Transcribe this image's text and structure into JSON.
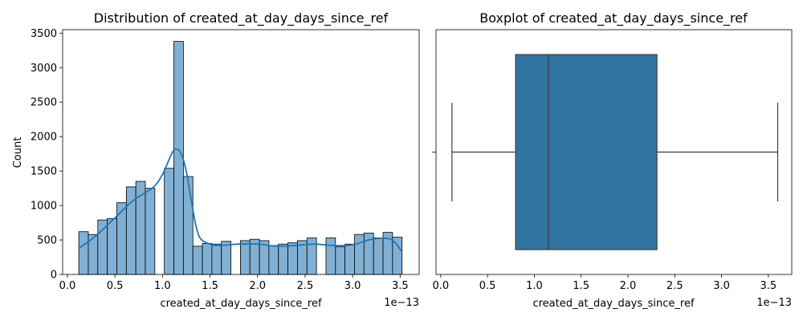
{
  "chart_data": [
    {
      "type": "histogram",
      "title": "Distribution of created_at_day_days_since_ref",
      "xlabel": "created_at_day_days_since_ref",
      "ylabel": "Count",
      "x_scale_label": "1e−13",
      "xlim": [
        -0.05,
        3.7
      ],
      "ylim": [
        0,
        3550
      ],
      "x_ticks": [
        0.0,
        0.5,
        1.0,
        1.5,
        2.0,
        2.5,
        3.0,
        3.5
      ],
      "x_tick_labels": [
        "0.0",
        "0.5",
        "1.0",
        "1.5",
        "2.0",
        "2.5",
        "3.0",
        "3.5"
      ],
      "y_ticks": [
        0,
        500,
        1000,
        1500,
        2000,
        2500,
        3000,
        3500
      ],
      "y_tick_labels": [
        "0",
        "500",
        "1000",
        "1500",
        "2000",
        "2500",
        "3000",
        "3500"
      ],
      "bar_color": "#82b0d4",
      "kde_color": "#1f77b4",
      "bins": [
        {
          "x0": 0.12,
          "x1": 0.22,
          "count": 620
        },
        {
          "x0": 0.22,
          "x1": 0.32,
          "count": 580
        },
        {
          "x0": 0.32,
          "x1": 0.42,
          "count": 790
        },
        {
          "x0": 0.42,
          "x1": 0.52,
          "count": 810
        },
        {
          "x0": 0.52,
          "x1": 0.62,
          "count": 1040
        },
        {
          "x0": 0.62,
          "x1": 0.72,
          "count": 1270
        },
        {
          "x0": 0.72,
          "x1": 0.82,
          "count": 1350
        },
        {
          "x0": 0.82,
          "x1": 0.92,
          "count": 1250
        },
        {
          "x0": 1.02,
          "x1": 1.12,
          "count": 1540
        },
        {
          "x0": 1.12,
          "x1": 1.22,
          "count": 3380
        },
        {
          "x0": 1.22,
          "x1": 1.32,
          "count": 1420
        },
        {
          "x0": 1.32,
          "x1": 1.42,
          "count": 410
        },
        {
          "x0": 1.42,
          "x1": 1.52,
          "count": 450
        },
        {
          "x0": 1.52,
          "x1": 1.62,
          "count": 440
        },
        {
          "x0": 1.62,
          "x1": 1.72,
          "count": 480
        },
        {
          "x0": 1.82,
          "x1": 1.92,
          "count": 490
        },
        {
          "x0": 1.92,
          "x1": 2.02,
          "count": 510
        },
        {
          "x0": 2.02,
          "x1": 2.12,
          "count": 490
        },
        {
          "x0": 2.12,
          "x1": 2.22,
          "count": 420
        },
        {
          "x0": 2.22,
          "x1": 2.32,
          "count": 440
        },
        {
          "x0": 2.32,
          "x1": 2.42,
          "count": 460
        },
        {
          "x0": 2.42,
          "x1": 2.52,
          "count": 490
        },
        {
          "x0": 2.52,
          "x1": 2.62,
          "count": 530
        },
        {
          "x0": 2.72,
          "x1": 2.82,
          "count": 530
        },
        {
          "x0": 2.82,
          "x1": 2.92,
          "count": 400
        },
        {
          "x0": 2.92,
          "x1": 3.02,
          "count": 440
        },
        {
          "x0": 3.02,
          "x1": 3.12,
          "count": 580
        },
        {
          "x0": 3.12,
          "x1": 3.22,
          "count": 600
        },
        {
          "x0": 3.22,
          "x1": 3.32,
          "count": 530
        },
        {
          "x0": 3.32,
          "x1": 3.42,
          "count": 610
        },
        {
          "x0": 3.42,
          "x1": 3.52,
          "count": 540
        }
      ],
      "kde": {
        "x": [
          0.12,
          0.3,
          0.5,
          0.7,
          0.9,
          1.0,
          1.1,
          1.15,
          1.2,
          1.25,
          1.3,
          1.35,
          1.4,
          1.5,
          1.6,
          1.8,
          2.0,
          2.2,
          2.4,
          2.6,
          2.8,
          3.0,
          3.2,
          3.4,
          3.52
        ],
        "y": [
          380,
          560,
          820,
          1080,
          1260,
          1450,
          1760,
          1820,
          1740,
          1500,
          1100,
          720,
          520,
          440,
          420,
          440,
          440,
          410,
          420,
          440,
          420,
          430,
          510,
          510,
          330
        ]
      }
    },
    {
      "type": "boxplot",
      "title": "Boxplot of created_at_day_days_since_ref",
      "xlabel": "created_at_day_days_since_ref",
      "x_scale_label": "1e−13",
      "xlim": [
        -0.05,
        3.75
      ],
      "x_ticks": [
        0.0,
        0.5,
        1.0,
        1.5,
        2.0,
        2.5,
        3.0,
        3.5
      ],
      "x_tick_labels": [
        "0.0",
        "0.5",
        "1.0",
        "1.5",
        "2.0",
        "2.5",
        "3.0",
        "3.5"
      ],
      "box_color": "#3274a1",
      "min": 0.12,
      "q1": 0.8,
      "median": 1.15,
      "q3": 2.31,
      "max": 3.6
    }
  ]
}
